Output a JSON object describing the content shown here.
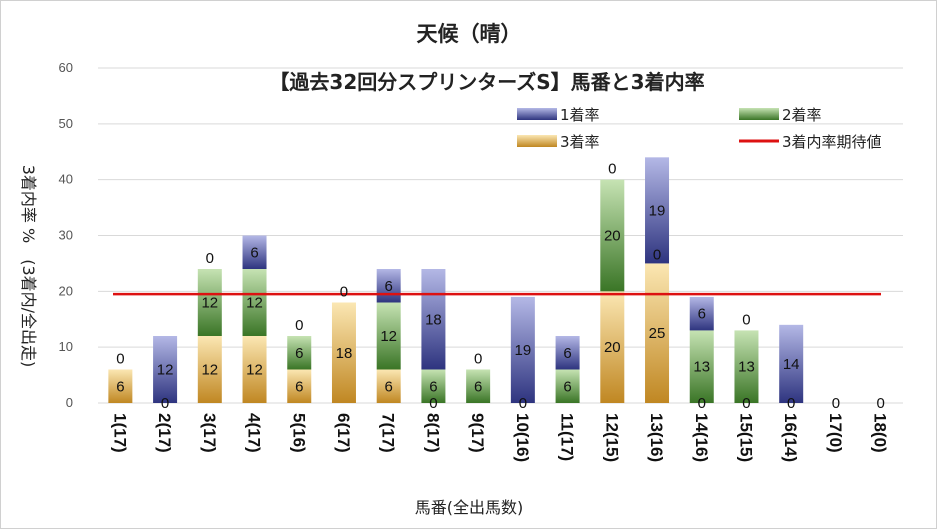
{
  "chart_data": {
    "type": "bar",
    "title": "天候（晴）",
    "subtitle": "【過去32回分スプリンターズS】馬番と3着内率",
    "xlabel": "馬番(全出馬数)",
    "ylabel": "3着内率 %　(3着内/全出走)",
    "ylim": [
      0,
      60
    ],
    "yticks": [
      0,
      10,
      20,
      30,
      40,
      50,
      60
    ],
    "categories": [
      "1(17)",
      "2(17)",
      "3(17)",
      "4(17)",
      "5(16)",
      "6(17)",
      "7(17)",
      "8(17)",
      "9(17)",
      "10(16)",
      "11(17)",
      "12(15)",
      "13(16)",
      "14(16)",
      "15(15)",
      "16(14)",
      "17(0)",
      "18(0)"
    ],
    "series": [
      {
        "name": "1着率",
        "color": "#3a3f8f",
        "values": [
          0,
          12,
          0,
          6,
          0,
          0,
          6,
          18,
          0,
          19,
          6,
          0,
          19,
          6,
          0,
          14,
          0,
          0
        ]
      },
      {
        "name": "2着率",
        "color": "#3f7a2a",
        "values": [
          0,
          0,
          12,
          12,
          6,
          0,
          12,
          6,
          6,
          0,
          6,
          20,
          0,
          13,
          13,
          0,
          0,
          0
        ]
      },
      {
        "name": "3着率",
        "color": "#c8902a",
        "values": [
          6,
          0,
          12,
          12,
          6,
          18,
          6,
          0,
          0,
          0,
          0,
          20,
          25,
          0,
          0,
          0,
          0,
          0
        ]
      }
    ],
    "labels": {
      "third": [
        "6",
        "0",
        "12",
        "12",
        "6",
        "18",
        "6",
        "0",
        "",
        "0",
        "",
        "20",
        "25",
        "0",
        "0",
        "0",
        "0",
        "0"
      ],
      "second": [
        "",
        "",
        "12",
        "12",
        "6",
        "",
        "12",
        "6",
        "6",
        "",
        "6",
        "20",
        "0",
        "13",
        "13",
        "",
        "",
        ""
      ],
      "first": [
        "0",
        "12",
        "0",
        "6",
        "0",
        "0",
        "6",
        "18",
        "0",
        "19",
        "6",
        "0",
        "19",
        "6",
        "0",
        "14",
        "",
        ""
      ]
    },
    "legend": [
      {
        "name": "1着率",
        "kind": "bar",
        "color": "#3a3f8f"
      },
      {
        "name": "2着率",
        "kind": "bar",
        "color": "#3f7a2a"
      },
      {
        "name": "3着率",
        "kind": "bar",
        "color": "#c8902a"
      },
      {
        "name": "3着内率期待値",
        "kind": "line",
        "color": "#dd1111"
      }
    ],
    "legend_position": "top-right",
    "reference_line": {
      "name": "3着内率期待値",
      "value": 19.5,
      "color": "#dd1111"
    },
    "grid": true
  }
}
